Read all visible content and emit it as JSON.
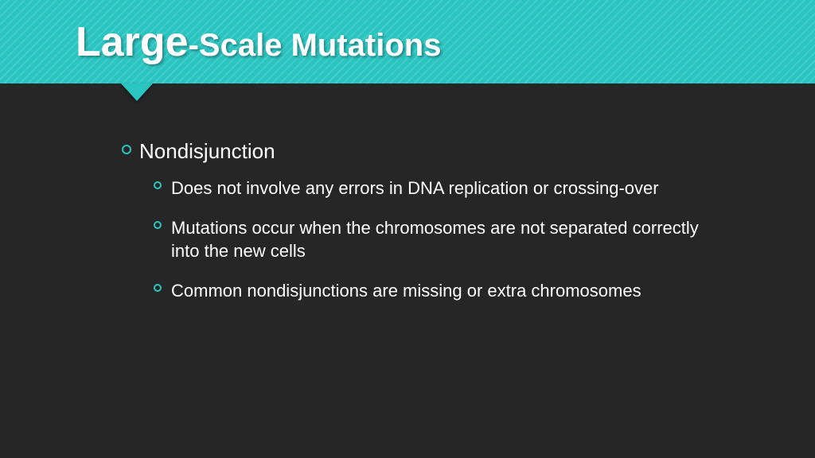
{
  "colors": {
    "accent": "#2ac5c1",
    "background": "#262626",
    "text": "#ffffff"
  },
  "header": {
    "title_large": "Large",
    "title_rest": "-Scale Mutations"
  },
  "content": {
    "main_bullet": "Nondisjunction",
    "sub_bullets": [
      "Does not involve any errors in DNA replication or crossing-over",
      "Mutations occur when the chromosomes are not separated correctly into the new cells",
      "Common nondisjunctions are missing or extra chromosomes"
    ]
  },
  "typography": {
    "title_large_fontsize": 52,
    "title_rest_fontsize": 40,
    "lvl1_fontsize": 26,
    "lvl2_fontsize": 22
  }
}
